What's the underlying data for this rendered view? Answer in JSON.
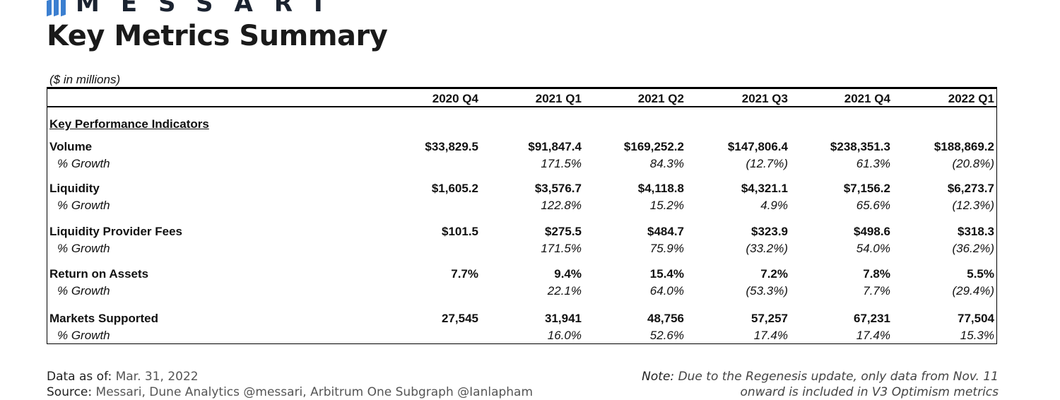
{
  "brand": {
    "name": "MESSARI",
    "color": "#3b7fd0"
  },
  "title": "Key Metrics Summary",
  "units": "($ in millions)",
  "columns": [
    "2020 Q4",
    "2021 Q1",
    "2021 Q2",
    "2021 Q3",
    "2021 Q4",
    "2022 Q1"
  ],
  "section_title": "Key Performance Indicators",
  "rows": [
    {
      "label": "Volume",
      "values": [
        "$33,829.5",
        "$91,847.4",
        "$169,252.2",
        "$147,806.4",
        "$238,351.3",
        "$188,869.2"
      ],
      "growth_label": "% Growth",
      "growth": [
        "",
        "171.5%",
        "84.3%",
        "(12.7%)",
        "61.3%",
        "(20.8%)"
      ]
    },
    {
      "label": "Liquidity",
      "values": [
        "$1,605.2",
        "$3,576.7",
        "$4,118.8",
        "$4,321.1",
        "$7,156.2",
        "$6,273.7"
      ],
      "growth_label": "% Growth",
      "growth": [
        "",
        "122.8%",
        "15.2%",
        "4.9%",
        "65.6%",
        "(12.3%)"
      ]
    },
    {
      "label": "Liquidity Provider Fees",
      "values": [
        "$101.5",
        "$275.5",
        "$484.7",
        "$323.9",
        "$498.6",
        "$318.3"
      ],
      "growth_label": "% Growth",
      "growth": [
        "",
        "171.5%",
        "75.9%",
        "(33.2%)",
        "54.0%",
        "(36.2%)"
      ]
    },
    {
      "label": "Return on Assets",
      "values": [
        "7.7%",
        "9.4%",
        "15.4%",
        "7.2%",
        "7.8%",
        "5.5%"
      ],
      "growth_label": "% Growth",
      "growth": [
        "",
        "22.1%",
        "64.0%",
        "(53.3%)",
        "7.7%",
        "(29.4%)"
      ]
    },
    {
      "label": "Markets Supported",
      "values": [
        "27,545",
        "31,941",
        "48,756",
        "57,257",
        "67,231",
        "77,504"
      ],
      "growth_label": "% Growth",
      "growth": [
        "",
        "16.0%",
        "52.6%",
        "17.4%",
        "17.4%",
        "15.3%"
      ]
    }
  ],
  "footer": {
    "data_as_of_label": "Data as of:",
    "data_as_of": "Mar. 31, 2022",
    "source_label": "Source:",
    "source": "Messari, Dune Analytics @messari, Arbitrum One Subgraph @Ianlapham",
    "note_label": "Note:",
    "note_line1": "Due to the Regenesis update, only data from Nov. 11",
    "note_line2": "onward is included in V3 Optimism metrics"
  }
}
